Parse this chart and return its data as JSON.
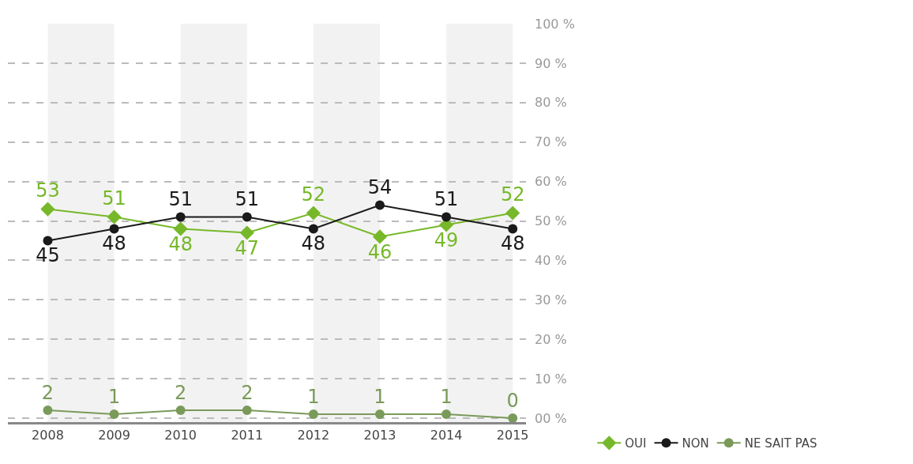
{
  "chart_data": {
    "type": "line",
    "categories": [
      "2008",
      "2009",
      "2010",
      "2011",
      "2012",
      "2013",
      "2014",
      "2015"
    ],
    "series": [
      {
        "name": "OUI",
        "color": "#77b82a",
        "marker": "diamond",
        "values": [
          53,
          51,
          48,
          47,
          52,
          46,
          49,
          52
        ]
      },
      {
        "name": "NON",
        "color": "#1a1a1a",
        "marker": "circle",
        "values": [
          45,
          48,
          51,
          51,
          48,
          54,
          51,
          48
        ]
      },
      {
        "name": "NE SAIT PAS",
        "color": "#7a9a5a",
        "marker": "circle",
        "values": [
          2,
          1,
          2,
          2,
          1,
          1,
          1,
          0
        ]
      }
    ],
    "ylim": [
      -1,
      100
    ],
    "yticks": [
      {
        "value": 0,
        "label": "00 %"
      },
      {
        "value": 10,
        "label": "10 %"
      },
      {
        "value": 20,
        "label": "20 %"
      },
      {
        "value": 30,
        "label": "30 %"
      },
      {
        "value": 40,
        "label": "40 %"
      },
      {
        "value": 50,
        "label": "50 %"
      },
      {
        "value": 60,
        "label": "60 %"
      },
      {
        "value": 70,
        "label": "70 %"
      },
      {
        "value": 80,
        "label": "80 %"
      },
      {
        "value": 90,
        "label": "90 %"
      },
      {
        "value": 100,
        "label": "100 %"
      }
    ],
    "bands": [
      {
        "axis": "x",
        "from": "2008",
        "to": "2009",
        "color": "#f2f2f2"
      },
      {
        "axis": "x",
        "from": "2010",
        "to": "2011",
        "color": "#f2f2f2"
      },
      {
        "axis": "x",
        "from": "2012",
        "to": "2013",
        "color": "#f2f2f2"
      },
      {
        "axis": "x",
        "from": "2014",
        "to": "2015",
        "color": "#f2f2f2"
      }
    ],
    "grid": "y",
    "data_labels": true,
    "legend": "bottom right",
    "line_style": "solid"
  }
}
